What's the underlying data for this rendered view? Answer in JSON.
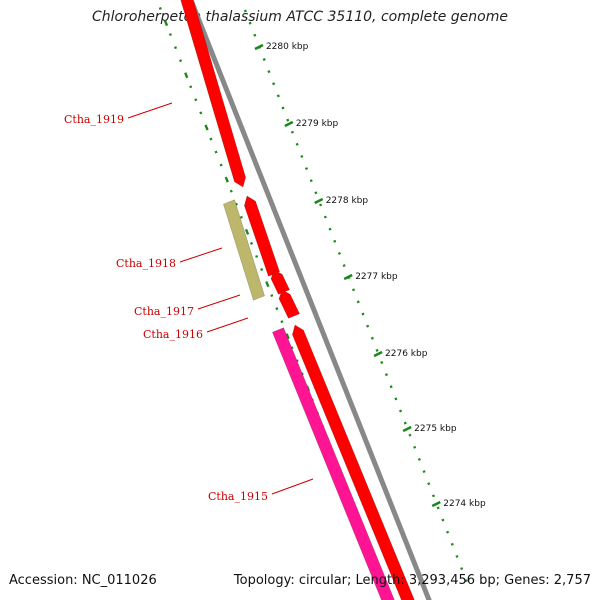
{
  "title": "Chloroherpeton thalassium ATCC 35110, complete genome",
  "footer": {
    "accession": "Accession: NC_011026",
    "summary": "Topology: circular; Length: 3,293,456 bp; Genes: 2,757"
  },
  "colors": {
    "backbone": "#888888",
    "cds_red": "#ff0000",
    "cds_pink": "#ff1493",
    "cds_olive": "#bdb76b",
    "gc_tick": "#1a8a1a",
    "label_red": "#cc0000"
  },
  "scale_ticks": [
    {
      "label": "2280 kbp",
      "kbp": 2280
    },
    {
      "label": "2279 kbp",
      "kbp": 2279
    },
    {
      "label": "2278 kbp",
      "kbp": 2278
    },
    {
      "label": "2277 kbp",
      "kbp": 2277
    },
    {
      "label": "2276 kbp",
      "kbp": 2276
    },
    {
      "label": "2275 kbp",
      "kbp": 2275
    },
    {
      "label": "2274 kbp",
      "kbp": 2274
    }
  ],
  "genes": [
    {
      "name": "Ctha_1919",
      "strand": "forward",
      "color": "cds_red"
    },
    {
      "name": "Ctha_1918",
      "strand": "reverse",
      "color": "cds_olive"
    },
    {
      "name": "Ctha_1917",
      "strand": "forward",
      "color": "cds_red"
    },
    {
      "name": "Ctha_1916",
      "strand": "forward",
      "color": "cds_red"
    },
    {
      "name": "Ctha_1915",
      "strand": "reverse",
      "color": "cds_pink"
    }
  ]
}
